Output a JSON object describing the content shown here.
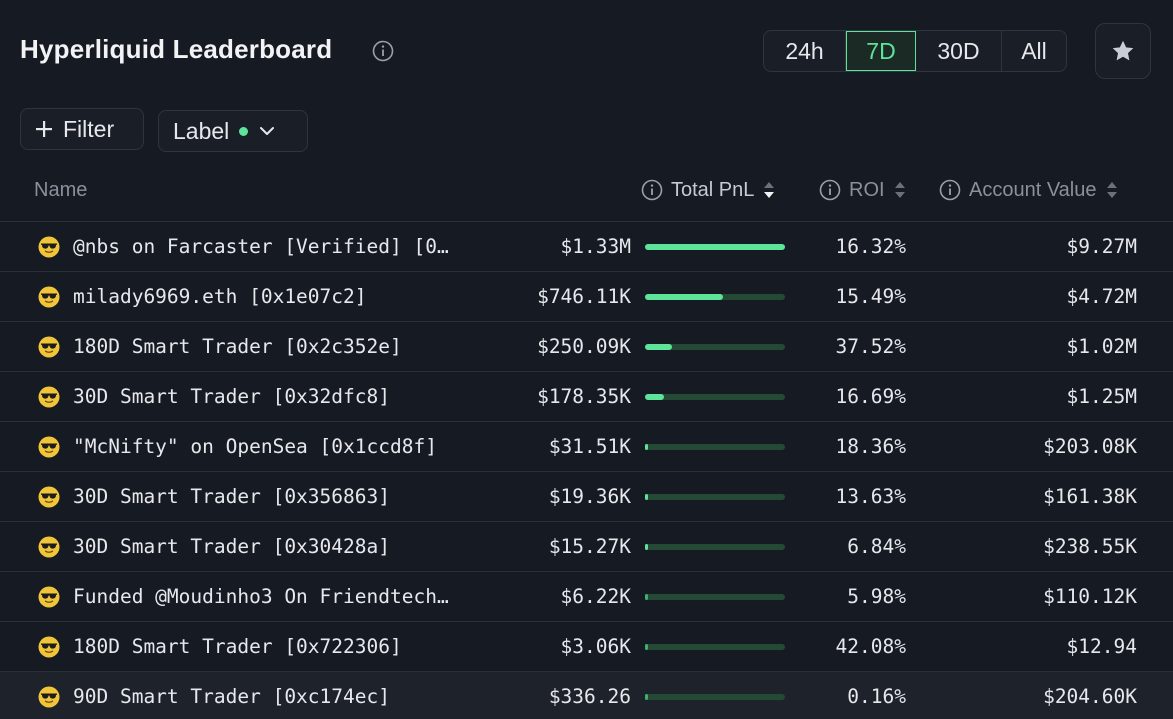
{
  "header": {
    "title": "Hyperliquid Leaderboard",
    "periods": [
      {
        "label": "24h",
        "active": false
      },
      {
        "label": "7D",
        "active": true
      },
      {
        "label": "30D",
        "active": false
      },
      {
        "label": "All",
        "active": false
      }
    ]
  },
  "filters": {
    "filter_label": "Filter",
    "label_label": "Label"
  },
  "columns": {
    "name": "Name",
    "total_pnl": "Total PnL",
    "roi": "ROI",
    "account_value": "Account Value"
  },
  "rows": [
    {
      "name": "@nbs on Farcaster [Verified] [0…",
      "pnl": "$1.33M",
      "pnl_fraction": 1.0,
      "roi": "16.32%",
      "account_value": "$9.27M"
    },
    {
      "name": "milady6969.eth [0x1e07c2]",
      "pnl": "$746.11K",
      "pnl_fraction": 0.56,
      "roi": "15.49%",
      "account_value": "$4.72M"
    },
    {
      "name": "180D Smart Trader [0x2c352e]",
      "pnl": "$250.09K",
      "pnl_fraction": 0.19,
      "roi": "37.52%",
      "account_value": "$1.02M"
    },
    {
      "name": "30D Smart Trader [0x32dfc8]",
      "pnl": "$178.35K",
      "pnl_fraction": 0.134,
      "roi": "16.69%",
      "account_value": "$1.25M"
    },
    {
      "name": "\"McNifty\" on OpenSea [0x1ccd8f]",
      "pnl": "$31.51K",
      "pnl_fraction": 0.024,
      "roi": "18.36%",
      "account_value": "$203.08K"
    },
    {
      "name": "30D Smart Trader [0x356863]",
      "pnl": "$19.36K",
      "pnl_fraction": 0.015,
      "roi": "13.63%",
      "account_value": "$161.38K"
    },
    {
      "name": "30D Smart Trader [0x30428a]",
      "pnl": "$15.27K",
      "pnl_fraction": 0.011,
      "roi": "6.84%",
      "account_value": "$238.55K"
    },
    {
      "name": "Funded @Moudinho3 On Friendtech…",
      "pnl": "$6.22K",
      "pnl_fraction": 0.005,
      "roi": "5.98%",
      "account_value": "$110.12K"
    },
    {
      "name": "180D Smart Trader [0x722306]",
      "pnl": "$3.06K",
      "pnl_fraction": 0.002,
      "roi": "42.08%",
      "account_value": "$12.94"
    },
    {
      "name": "90D Smart Trader [0xc174ec]",
      "pnl": "$336.26",
      "pnl_fraction": 0.0003,
      "roi": "0.16%",
      "account_value": "$204.60K"
    }
  ],
  "colors": {
    "accent_green": "#5ee39a",
    "bar_track": "#244a35",
    "background": "#161a22",
    "emoji_face": "#f0c53a"
  },
  "icons": {
    "row_icon": "sunglasses-emoji-icon",
    "star": "star-icon",
    "info": "info-icon"
  }
}
